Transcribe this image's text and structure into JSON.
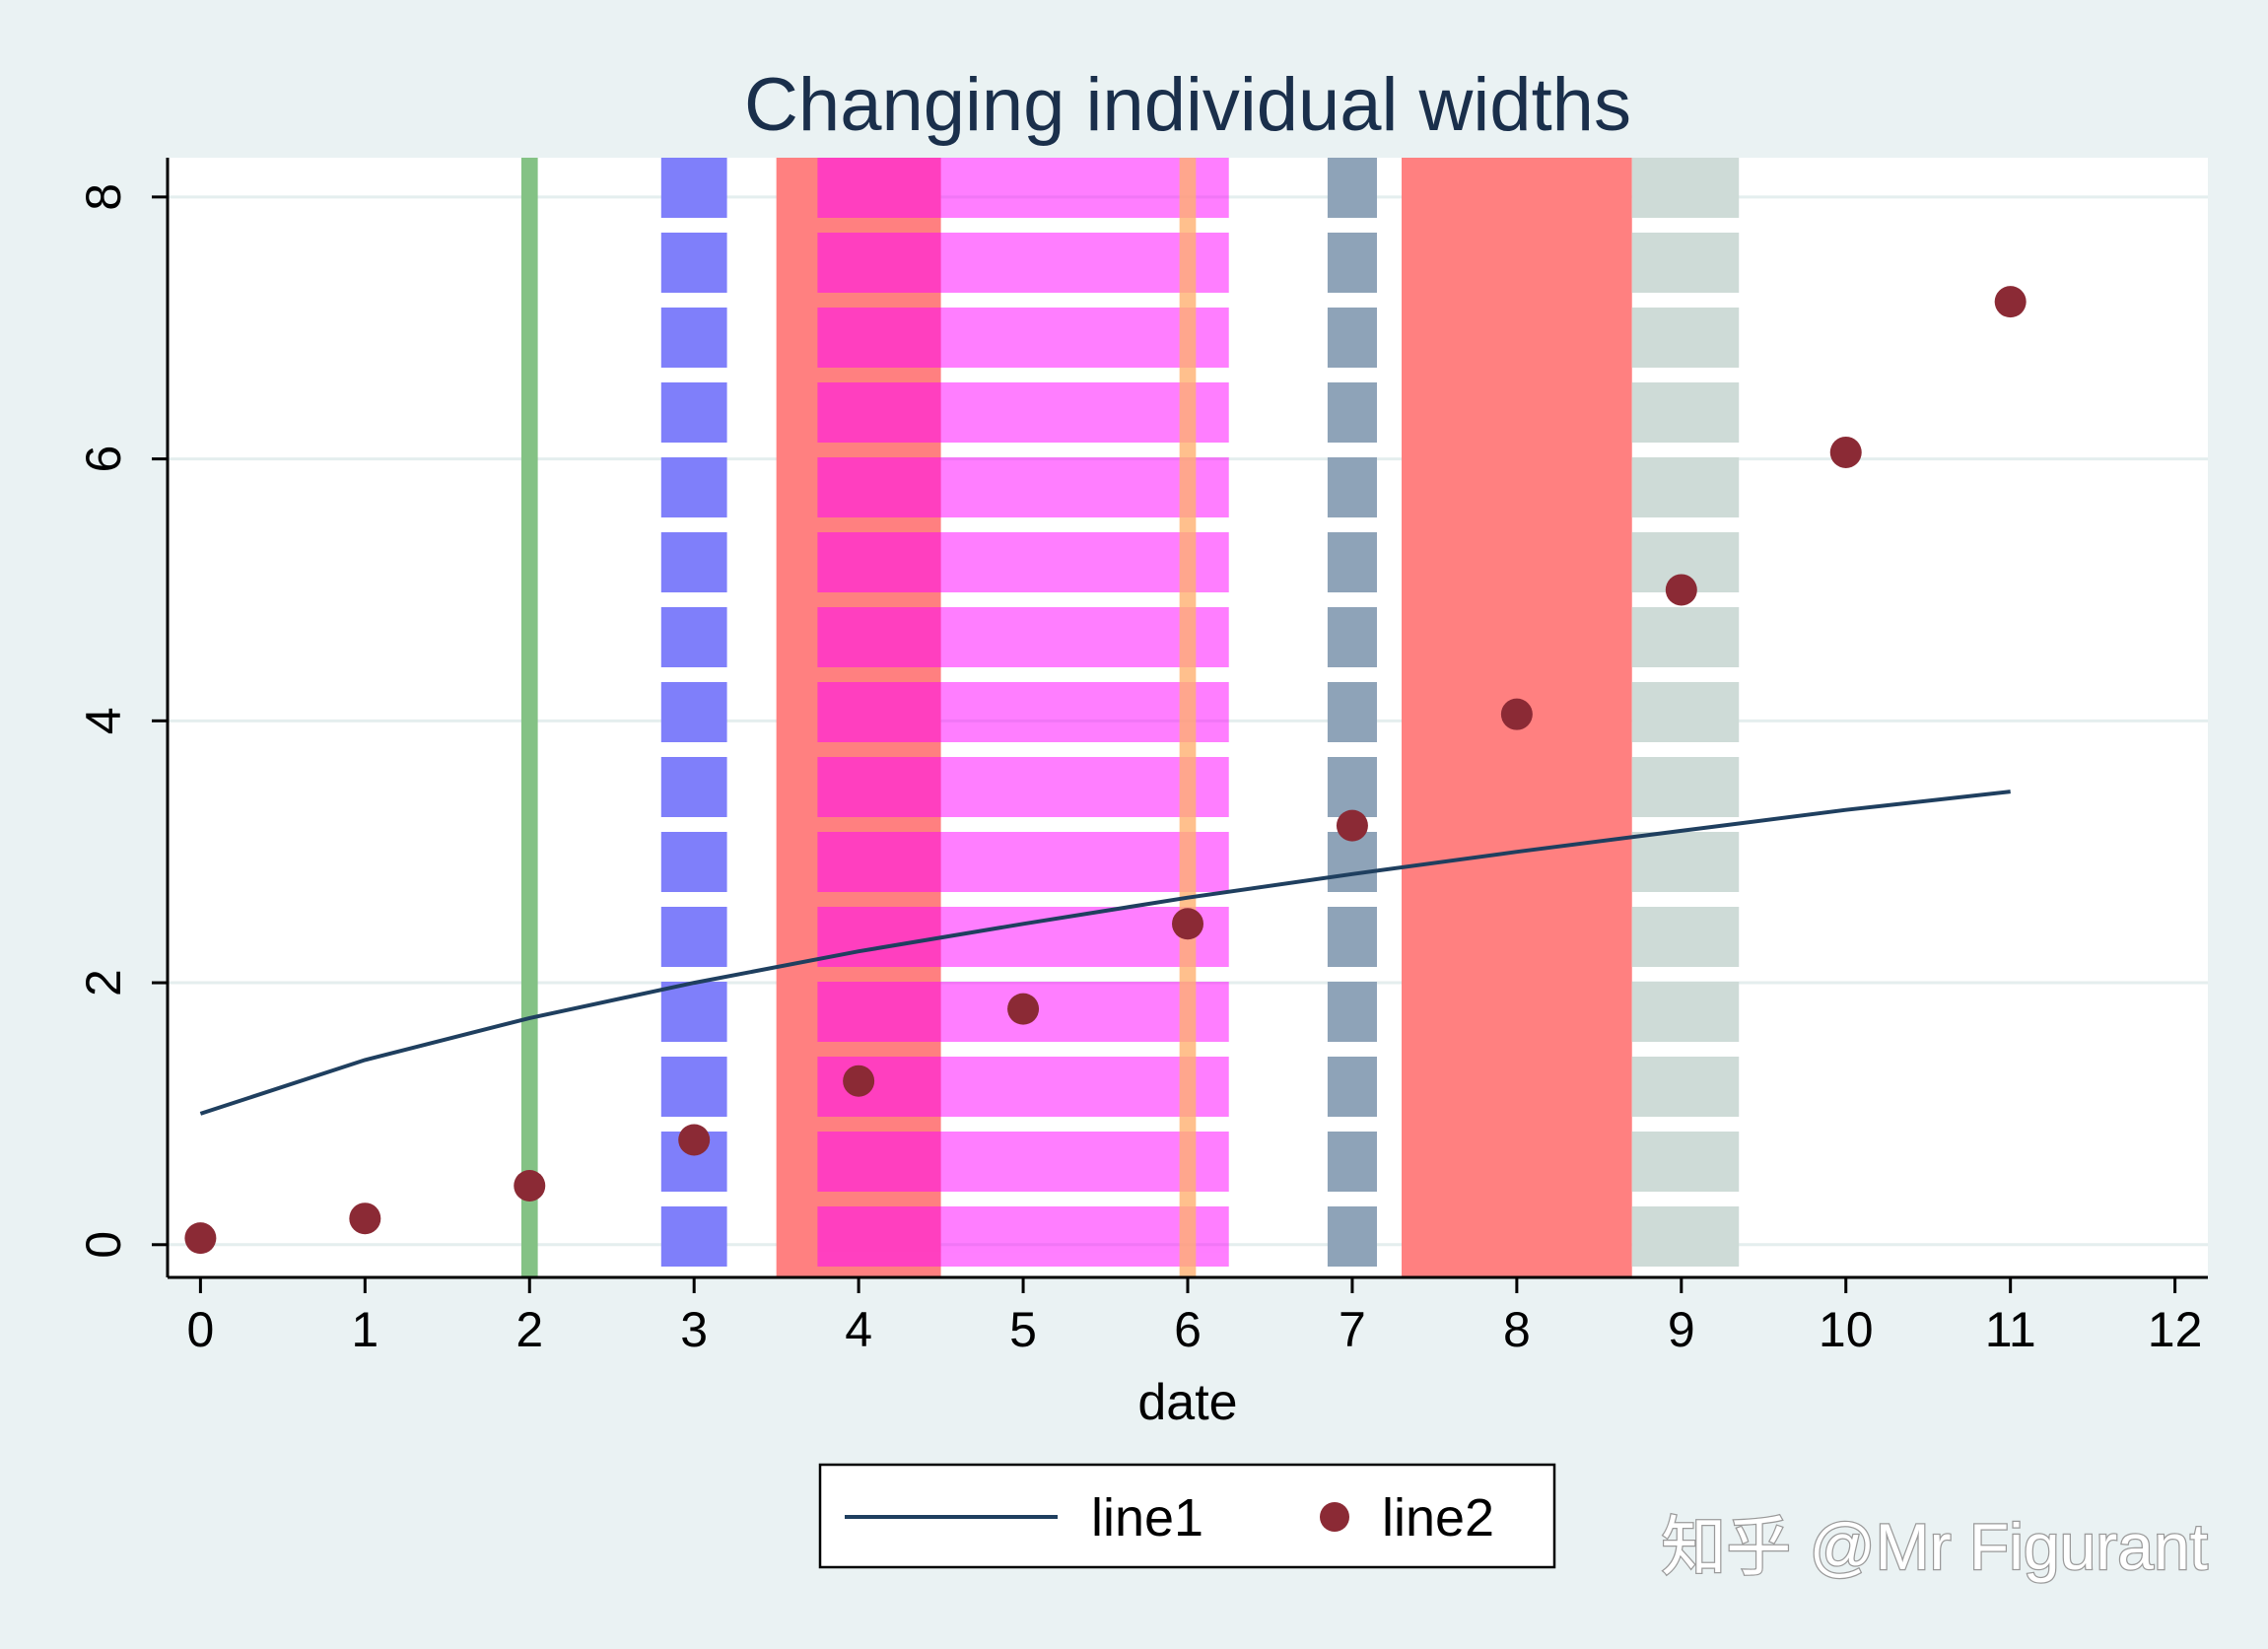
{
  "chart_data": {
    "type": "line",
    "title": "Changing individual widths",
    "xlabel": "date",
    "ylabel": "",
    "xlim": [
      -0.2,
      12.2
    ],
    "ylim": [
      -0.25,
      8.3
    ],
    "x_ticks": [
      0,
      1,
      2,
      3,
      4,
      5,
      6,
      7,
      8,
      9,
      10,
      11,
      12
    ],
    "y_ticks": [
      0,
      2,
      4,
      6,
      8
    ],
    "grid": "horizontal",
    "legend_position": "bottom",
    "series": [
      {
        "name": "line1",
        "type": "line",
        "color": "#1f3f5f",
        "x": [
          0,
          1,
          2,
          3,
          4,
          5,
          6,
          7,
          8,
          9,
          10,
          11
        ],
        "y": [
          1.0,
          1.41,
          1.73,
          2.0,
          2.24,
          2.45,
          2.65,
          2.83,
          3.0,
          3.16,
          3.32,
          3.46
        ]
      },
      {
        "name": "line2",
        "type": "scatter",
        "color": "#8b2a35",
        "x": [
          0,
          1,
          2,
          3,
          4,
          5,
          6,
          7,
          8,
          9,
          10,
          11
        ],
        "y": [
          0.05,
          0.2,
          0.45,
          0.8,
          1.25,
          1.8,
          2.45,
          3.2,
          4.05,
          5.0,
          6.05,
          7.2
        ]
      }
    ],
    "bands": [
      {
        "x0": 1.95,
        "x1": 2.05,
        "color": "#84c285",
        "pattern": "solid"
      },
      {
        "x0": 2.8,
        "x1": 3.2,
        "color": "#7f7ffa",
        "pattern": "dashed"
      },
      {
        "x0": 3.5,
        "x1": 4.5,
        "color": "#ff8080",
        "pattern": "solid"
      },
      {
        "x0": 3.75,
        "x1": 6.25,
        "color": "#ff00ff",
        "opacity": 0.5,
        "pattern": "dashed"
      },
      {
        "x0": 5.95,
        "x1": 6.05,
        "color": "#ffb070",
        "opacity": 0.8,
        "pattern": "solid"
      },
      {
        "x0": 6.85,
        "x1": 7.15,
        "color": "#8ea3b8",
        "pattern": "dashed"
      },
      {
        "x0": 7.3,
        "x1": 8.7,
        "color": "#ff8080",
        "pattern": "solid"
      },
      {
        "x0": 8.7,
        "x1": 9.35,
        "color": "#cedbd7",
        "pattern": "dashed"
      }
    ]
  },
  "watermark": "知乎 @Mr Figurant"
}
